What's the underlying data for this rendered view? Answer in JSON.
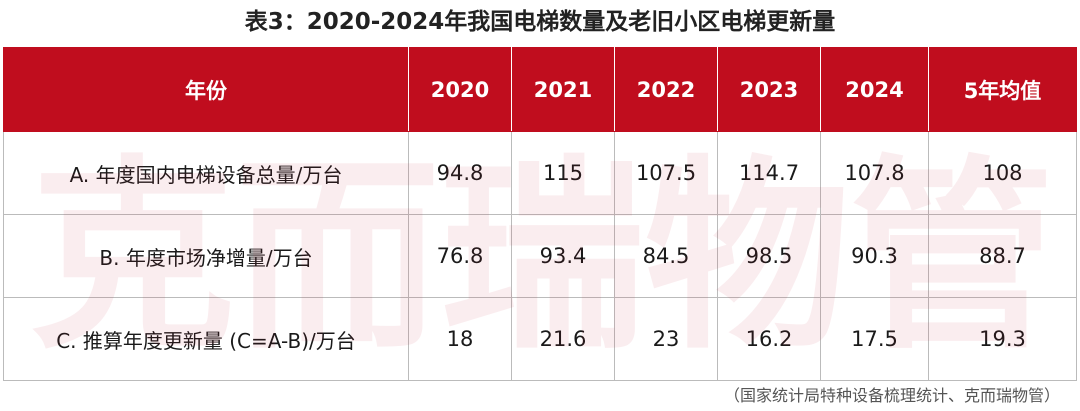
{
  "title": "表3：2020-2024年我国电梯数量及老旧小区电梯更新量",
  "watermark": [
    "克",
    "而",
    "瑞",
    "物",
    "管"
  ],
  "table": {
    "headers": [
      "年份",
      "2020",
      "2021",
      "2022",
      "2023",
      "2024",
      "5年均值"
    ],
    "rows": [
      {
        "label": "A. 年度国内电梯设备总量/万台",
        "values": [
          "94.8",
          "115",
          "107.5",
          "114.7",
          "107.8",
          "108"
        ]
      },
      {
        "label": "B. 年度市场净增量/万台",
        "values": [
          "76.8",
          "93.4",
          "84.5",
          "98.5",
          "90.3",
          "88.7"
        ]
      },
      {
        "label": "C. 推算年度更新量 (C=A-B)/万台",
        "values": [
          "18",
          "21.6",
          "23",
          "16.2",
          "17.5",
          "19.3"
        ]
      }
    ]
  },
  "source": "（国家统计局特种设备梳理统计、克而瑞物管）",
  "colors": {
    "header_bg": "#c00d1e",
    "header_text": "#ffffff",
    "watermark": "#c8102e"
  }
}
